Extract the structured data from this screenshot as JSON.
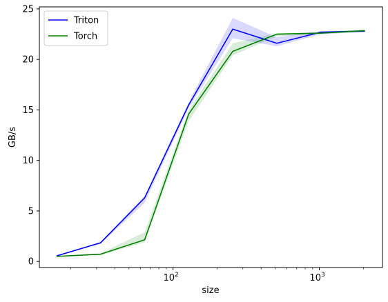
{
  "chart_data": {
    "type": "line",
    "xlabel": "size",
    "ylabel": "GB/s",
    "xscale": "log",
    "xlim": [
      12.2,
      2700
    ],
    "ylim": [
      -0.6,
      25.2
    ],
    "grid": false,
    "legend_position": "top-left",
    "x": [
      16,
      32,
      64,
      128,
      256,
      512,
      1024,
      2048
    ],
    "x_ticks": [
      {
        "value": 100,
        "base": "10",
        "exp": "2"
      },
      {
        "value": 1000,
        "base": "10",
        "exp": "3"
      }
    ],
    "y_ticks": [
      0,
      5,
      10,
      15,
      20,
      25
    ],
    "series": [
      {
        "name": "Triton",
        "color": "#0000ff",
        "band_color": "#0000ff",
        "values": [
          0.55,
          1.85,
          6.3,
          15.5,
          23.0,
          21.6,
          22.7,
          22.8
        ],
        "lower": [
          0.5,
          1.75,
          5.8,
          15.2,
          22.1,
          21.3,
          22.5,
          22.7
        ],
        "upper": [
          0.6,
          1.95,
          6.5,
          15.8,
          24.1,
          22.2,
          22.8,
          22.9
        ]
      },
      {
        "name": "Torch",
        "color": "#008000",
        "band_color": "#008000",
        "values": [
          0.5,
          0.72,
          2.15,
          14.6,
          20.8,
          22.5,
          22.6,
          22.85
        ],
        "lower": [
          0.45,
          0.65,
          1.9,
          13.9,
          20.4,
          22.3,
          22.5,
          22.75
        ],
        "upper": [
          0.55,
          0.8,
          2.9,
          15.0,
          21.6,
          22.6,
          22.7,
          22.95
        ]
      }
    ]
  }
}
